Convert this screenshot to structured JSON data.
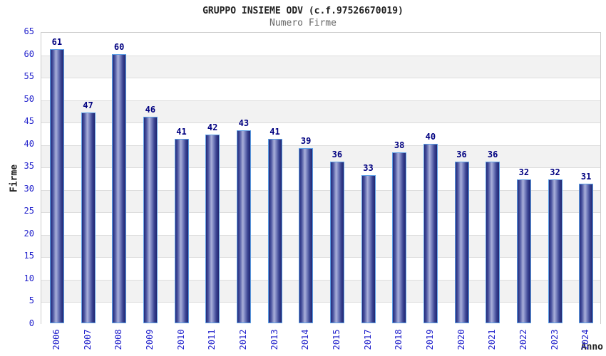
{
  "chart_data": {
    "type": "bar",
    "title": "GRUPPO INSIEME ODV (c.f.97526670019)",
    "subtitle": "Numero Firme",
    "xlabel": "Anno",
    "ylabel": "Firme",
    "categories": [
      "2006",
      "2007",
      "2008",
      "2009",
      "2010",
      "2011",
      "2012",
      "2013",
      "2014",
      "2015",
      "2017",
      "2018",
      "2019",
      "2020",
      "2021",
      "2022",
      "2023",
      "2024"
    ],
    "values": [
      61,
      47,
      60,
      46,
      41,
      42,
      43,
      41,
      39,
      36,
      33,
      38,
      40,
      36,
      36,
      32,
      32,
      31
    ],
    "ylim": [
      0,
      65
    ],
    "ytick_step": 5,
    "grid": "horizontal-bands",
    "legend": "none",
    "bar_labels_shown": true,
    "colors": {
      "tick_blue": "#2222cc",
      "value_navy": "#000080",
      "bar_border": "#5ea0e6",
      "bar_dark": "#23297a",
      "bar_mid": "#4b55a0",
      "bar_light": "#aab0da",
      "band_gray": "#f2f2f2",
      "band_white": "#ffffff",
      "grid_line": "#dddddd",
      "plot_border": "#cccccc",
      "title_color": "#222222",
      "subtitle_color": "#666666"
    }
  }
}
